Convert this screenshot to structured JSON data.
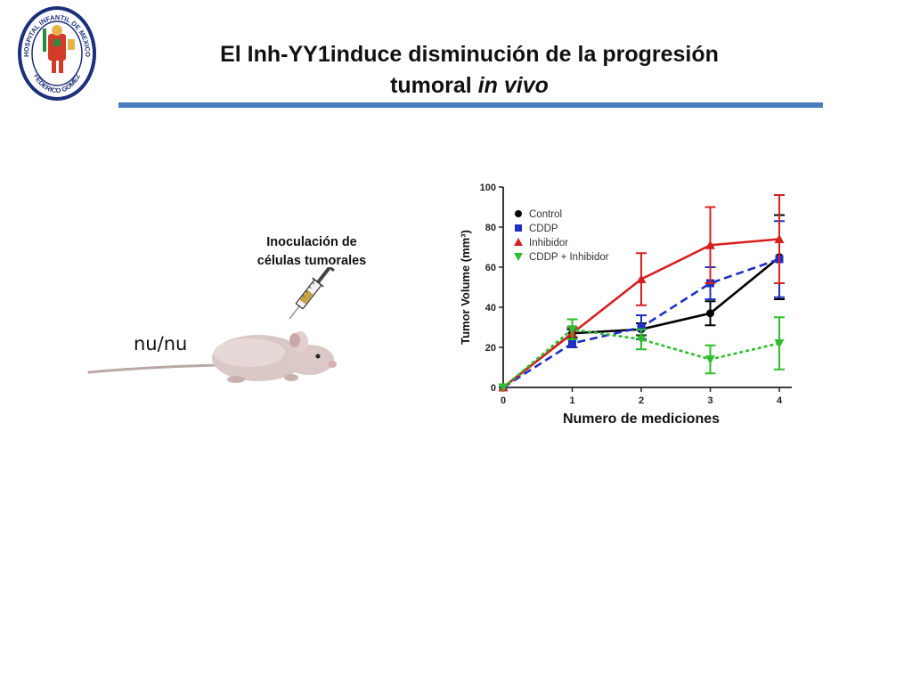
{
  "title": {
    "line1": "El Inh-YY1induce disminución de la progresión",
    "line2_plain": "tumoral",
    "line2_italic": "in vivo"
  },
  "colors": {
    "accent_rule": "#4a7cc0",
    "control": "#000000",
    "cddp": "#1f2fc4",
    "inhibidor": "#d62020",
    "cddp_inhibidor": "#2ebd2e"
  },
  "logo": {
    "text_upper": "HOSPITAL INFANTIL DE MEXICO",
    "text_lower": "FEDERICO GOMEZ"
  },
  "figure": {
    "strain_label": "nu/nu",
    "injection_label_line1": "Inoculación de",
    "injection_label_line2": "células tumorales",
    "mouse_icon": "mouse-icon",
    "syringe_icon": "syringe-icon"
  },
  "chart_data": {
    "type": "line",
    "xlabel": "Numero de mediciones",
    "ylabel": "Tumor Volume (mm³)",
    "x": [
      0,
      1,
      2,
      3,
      4
    ],
    "xticks": [
      "0",
      "1",
      "2",
      "3",
      "4"
    ],
    "yticks": [
      "0",
      "20",
      "40",
      "60",
      "80",
      "100"
    ],
    "xlim": [
      0,
      4
    ],
    "ylim": [
      0,
      100
    ],
    "grid": false,
    "legend_position": "top-left",
    "series": [
      {
        "name": "Control",
        "color": "#000000",
        "marker": "circle",
        "dash": "solid",
        "values": [
          0,
          27,
          29,
          37,
          65
        ],
        "errors": [
          0,
          2,
          3,
          6,
          21
        ]
      },
      {
        "name": "CDDP",
        "color": "#1f2fc4",
        "marker": "square",
        "dash": "dashed",
        "values": [
          0,
          22,
          30,
          52,
          64
        ],
        "errors": [
          0,
          2,
          6,
          8,
          19
        ]
      },
      {
        "name": "Inhibidor",
        "color": "#d62020",
        "marker": "triangle-up",
        "dash": "solid",
        "values": [
          0,
          27,
          54,
          71,
          74
        ],
        "errors": [
          0,
          3,
          13,
          19,
          22
        ]
      },
      {
        "name": "CDDP + Inhibidor",
        "color": "#2ebd2e",
        "marker": "triangle-down",
        "dash": "dotted",
        "values": [
          0,
          29,
          24,
          14,
          22
        ],
        "errors": [
          0,
          5,
          5,
          7,
          13
        ]
      }
    ]
  }
}
